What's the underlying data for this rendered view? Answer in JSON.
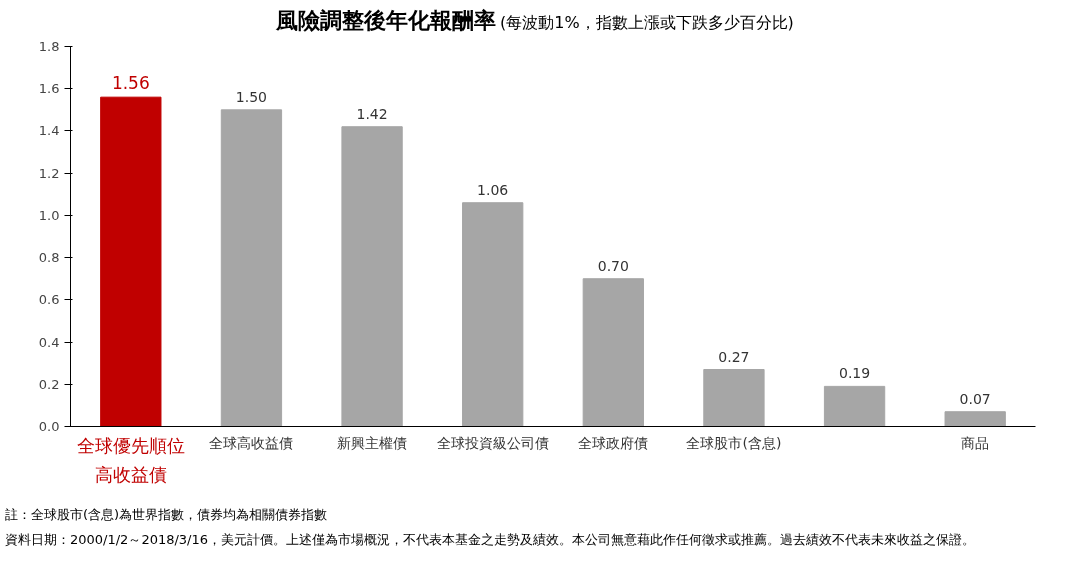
{
  "chart_data": {
    "type": "bar",
    "title": "風險調整後年化報酬率",
    "subtitle": "(每波動1%，指數上漲或下跌多少百分比)",
    "categories": [
      "全球優先順位高收益債",
      "全球高收益債",
      "新興主權債",
      "全球投資級公司債",
      "全球政府債",
      "全球股市(含息)",
      null,
      "商品"
    ],
    "values": [
      1.56,
      1.5,
      1.42,
      1.06,
      0.7,
      0.27,
      0.19,
      0.07
    ],
    "colors": [
      "#c00000",
      "#a6a6a6",
      "#a6a6a6",
      "#a6a6a6",
      "#a6a6a6",
      "#a6a6a6",
      "#a6a6a6",
      "#a6a6a6"
    ],
    "value_labels": [
      "1.56",
      "1.50",
      "1.42",
      "1.06",
      "0.70",
      "0.27",
      "0.19",
      "0.07"
    ],
    "ylim": [
      0,
      1.8
    ],
    "yticks": [
      {
        "value": 0,
        "label": "0.0"
      },
      0.2,
      0.4,
      0.6,
      0.8,
      {
        "value": 1,
        "label": "1.0"
      },
      1.2,
      1.4,
      1.6,
      1.8
    ],
    "grid": false,
    "annotations": [
      "註：全球股市(含息)為世界指數，債券均為相關債券指數",
      "資料日期：2000/1/2～2018/3/16，美元計價。上述僅為市場概況，不代表本基金之走勢及績效。本公司無意藉此作任何徵求或推薦。過去績效不代表未來收益之保證。"
    ]
  }
}
